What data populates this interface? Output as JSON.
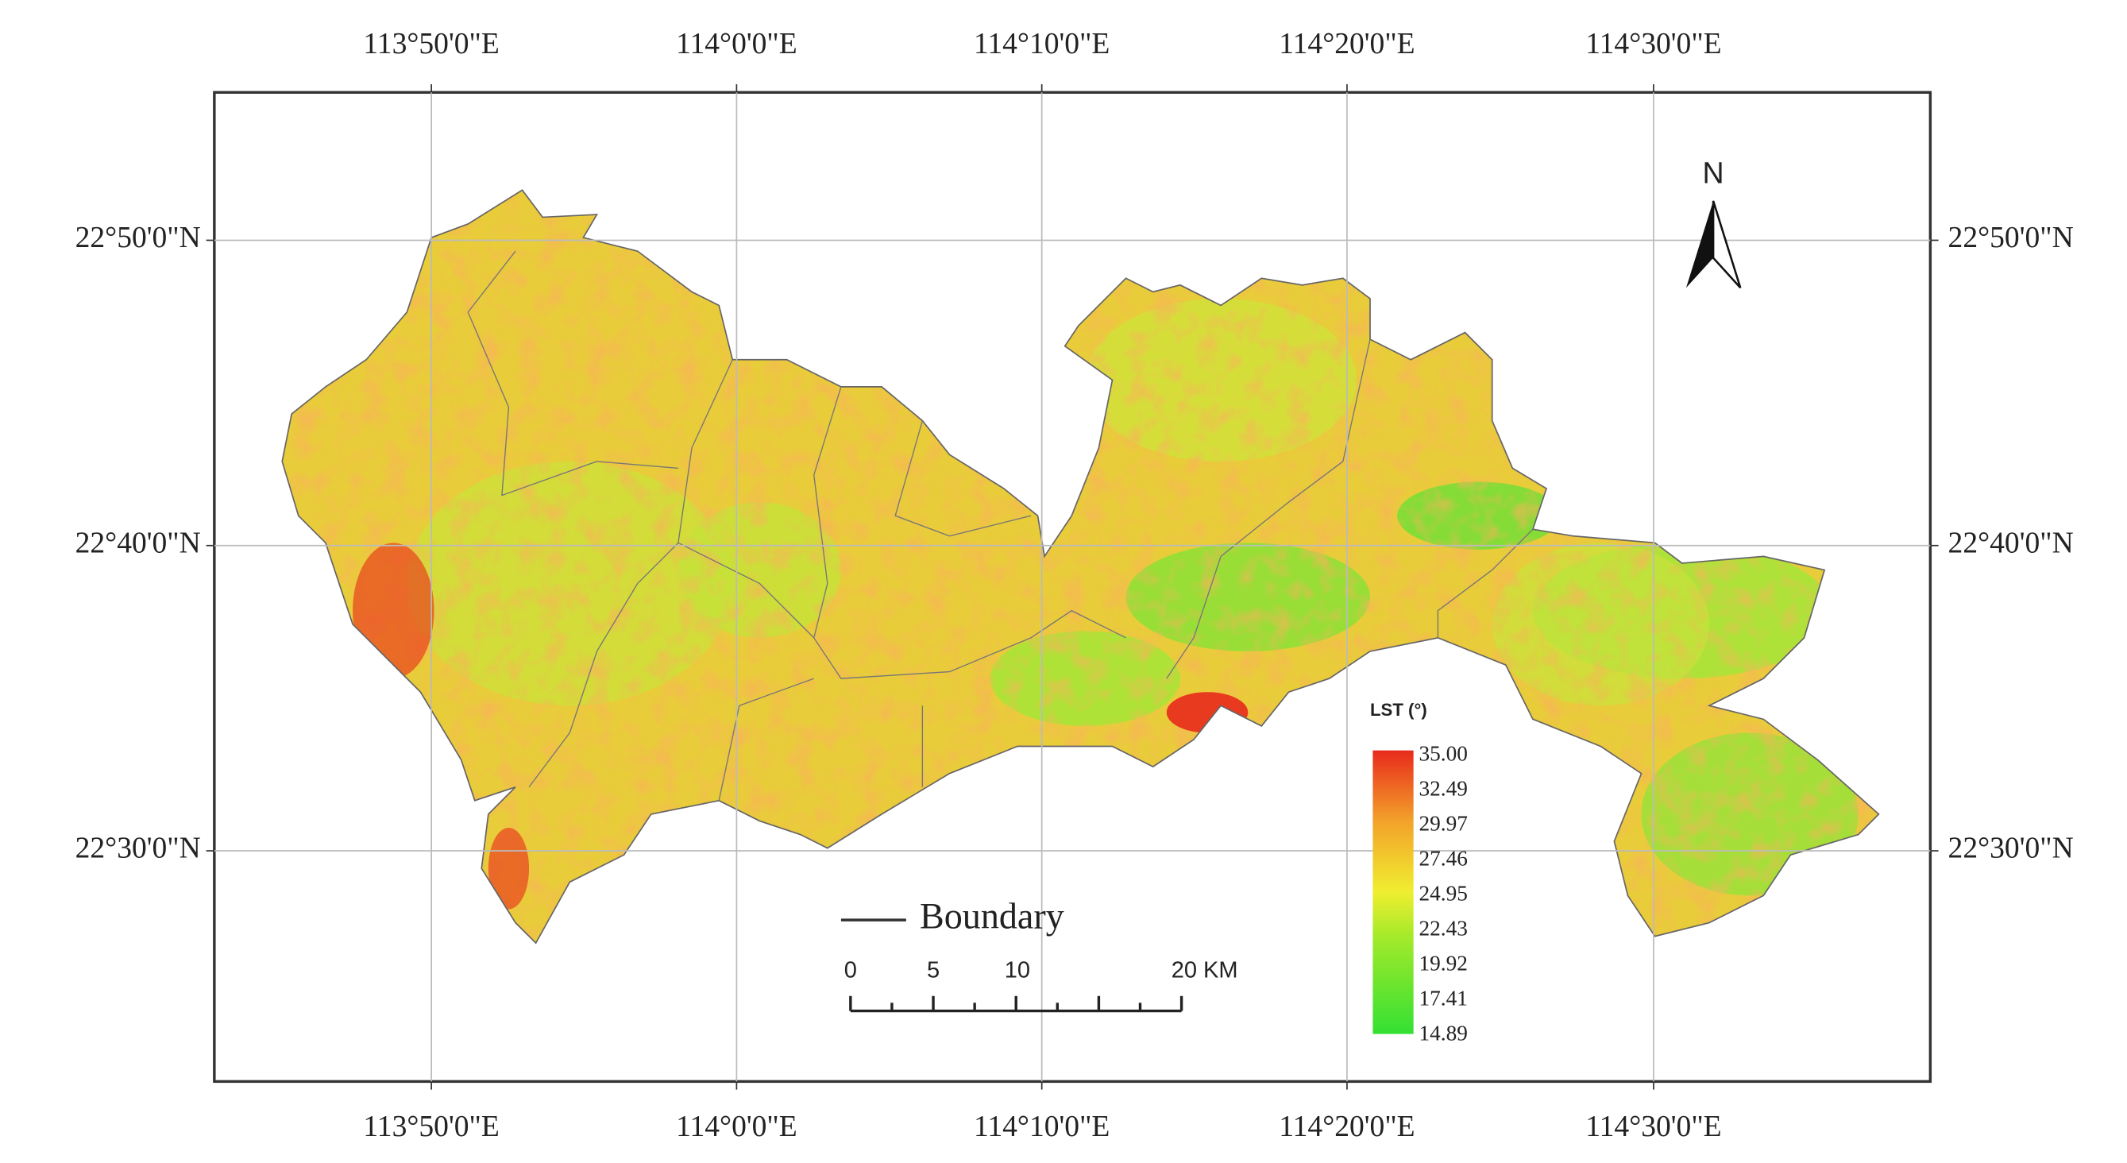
{
  "map": {
    "lon_labels": [
      "113°50'0\"E",
      "114°0'0\"E",
      "114°10'0\"E",
      "114°20'0\"E",
      "114°30'0\"E"
    ],
    "lat_labels": [
      "22°50'0\"N",
      "22°40'0\"N",
      "22°30'0\"N"
    ],
    "north": "N",
    "legend": {
      "title": "LST (°)",
      "values": [
        "35.00",
        "32.49",
        "29.97",
        "27.46",
        "24.95",
        "22.43",
        "19.92",
        "17.41",
        "14.89"
      ]
    },
    "boundary_label": "Boundary",
    "scale_bar": [
      "0",
      "5",
      "10",
      "20 KM"
    ]
  }
}
